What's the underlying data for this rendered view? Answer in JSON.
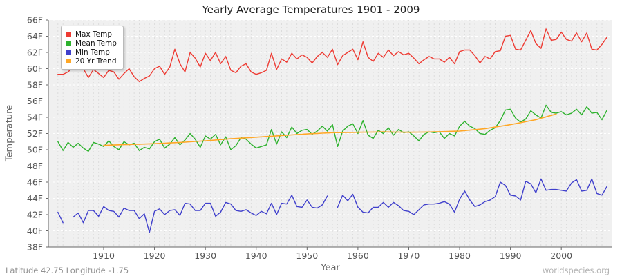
{
  "footer": {
    "left": "Latitude 42.75 Longitude -1.75",
    "right": "worldspecies.org"
  },
  "colors": {
    "plot_background": "#f0f0f0",
    "grid_vertical": "#dcdcdc",
    "grid_horizontal": "#ffffff",
    "axis": "#666666",
    "tick_text": "#555555",
    "title_text": "#222222"
  },
  "chart_data": {
    "type": "line",
    "title": "Yearly Average Temperatures 1901 - 2009",
    "xlabel": "Year",
    "ylabel": "Temperature",
    "years_range": [
      1901,
      2009
    ],
    "ylim": [
      38,
      66
    ],
    "ytick_step": 2,
    "ytick_suffix": "F",
    "xticks": [
      1910,
      1920,
      1930,
      1940,
      1950,
      1960,
      1970,
      1980,
      1990,
      2000
    ],
    "grid": "vertical dashed line per year, horizontal dashed line per 2F",
    "legend_position": "top-left",
    "series": [
      {
        "name": "Max Temp",
        "color": "#ee3b33",
        "values": [
          59.3,
          59.3,
          59.6,
          60.2,
          60.7,
          60.0,
          58.9,
          59.9,
          59.4,
          58.9,
          59.8,
          59.6,
          58.7,
          59.4,
          60.0,
          59.0,
          58.4,
          58.8,
          59.1,
          60.0,
          60.3,
          59.3,
          60.2,
          62.4,
          60.6,
          59.6,
          62.0,
          61.3,
          60.2,
          61.9,
          61.0,
          62.0,
          60.6,
          61.5,
          59.8,
          59.5,
          60.3,
          60.6,
          59.6,
          59.3,
          59.5,
          59.8,
          61.9,
          59.9,
          61.2,
          60.8,
          61.9,
          61.2,
          61.7,
          61.4,
          60.7,
          61.5,
          62.0,
          61.4,
          62.4,
          60.5,
          61.6,
          62.0,
          62.4,
          61.1,
          63.3,
          61.4,
          60.9,
          61.9,
          61.4,
          62.3,
          61.6,
          62.1,
          61.7,
          61.9,
          61.3,
          60.6,
          61.1,
          61.5,
          61.2,
          61.2,
          60.8,
          61.4,
          60.6,
          62.1,
          62.3,
          62.3,
          61.6,
          60.7,
          61.5,
          61.2,
          62.1,
          62.2,
          64.0,
          64.1,
          62.4,
          62.3,
          63.5,
          64.7,
          63.1,
          62.5,
          64.9,
          63.5,
          63.6,
          64.5,
          63.6,
          63.4,
          64.4,
          63.3,
          64.4,
          62.4,
          62.3,
          63.0,
          63.9
        ]
      },
      {
        "name": "Mean Temp",
        "color": "#2eb22e",
        "values": [
          51.0,
          49.9,
          50.9,
          50.3,
          50.8,
          50.2,
          49.8,
          50.9,
          50.7,
          50.4,
          51.1,
          50.4,
          50.0,
          51.0,
          50.6,
          50.8,
          49.9,
          50.3,
          50.1,
          51.0,
          51.3,
          50.2,
          50.7,
          51.5,
          50.6,
          51.2,
          52.0,
          51.3,
          50.3,
          51.7,
          51.3,
          51.9,
          50.6,
          51.6,
          50.0,
          50.5,
          51.5,
          51.3,
          50.7,
          50.2,
          50.4,
          50.6,
          52.5,
          50.7,
          52.2,
          51.5,
          52.8,
          52.0,
          52.4,
          52.5,
          51.9,
          52.3,
          52.9,
          52.3,
          53.1,
          50.4,
          52.3,
          52.9,
          53.2,
          52.0,
          53.6,
          51.8,
          51.4,
          52.4,
          52.0,
          52.7,
          51.8,
          52.5,
          52.1,
          52.2,
          51.7,
          51.1,
          51.9,
          52.2,
          52.1,
          52.2,
          51.4,
          52.0,
          51.7,
          52.9,
          53.5,
          52.9,
          52.6,
          52.0,
          51.9,
          52.4,
          52.7,
          53.6,
          54.9,
          55.0,
          53.9,
          53.4,
          53.8,
          54.8,
          54.3,
          53.9,
          55.5,
          54.6,
          54.5,
          54.7,
          54.3,
          54.5,
          55.0,
          54.3,
          55.3,
          54.5,
          54.6,
          53.7,
          54.9
        ]
      },
      {
        "name": "Min Temp",
        "color": "#4040cc",
        "values": [
          42.3,
          41.0,
          null,
          41.7,
          42.2,
          41.0,
          42.5,
          42.5,
          41.8,
          43.0,
          42.5,
          42.4,
          41.7,
          42.8,
          42.5,
          42.5,
          41.5,
          42.1,
          39.8,
          42.4,
          42.7,
          42.0,
          42.5,
          42.6,
          41.9,
          43.4,
          43.3,
          42.5,
          42.5,
          43.4,
          43.4,
          41.8,
          42.3,
          43.5,
          43.3,
          42.5,
          42.4,
          42.6,
          42.2,
          41.9,
          42.4,
          42.1,
          43.4,
          42.0,
          43.4,
          43.3,
          44.4,
          43.0,
          42.9,
          43.8,
          42.9,
          42.8,
          43.2,
          44.3,
          null,
          42.9,
          44.4,
          43.7,
          44.5,
          42.9,
          42.3,
          42.2,
          42.9,
          42.9,
          43.5,
          42.9,
          43.5,
          43.1,
          42.5,
          42.4,
          42.0,
          42.6,
          43.2,
          43.3,
          43.3,
          43.4,
          43.6,
          43.3,
          42.3,
          43.9,
          44.9,
          43.8,
          43.0,
          43.2,
          43.6,
          43.8,
          44.2,
          46.0,
          45.6,
          44.4,
          44.3,
          43.8,
          46.1,
          45.8,
          44.7,
          46.4,
          45.0,
          45.1,
          45.1,
          45.0,
          44.9,
          45.9,
          46.3,
          44.9,
          45.0,
          46.4,
          44.6,
          44.4,
          45.5
        ]
      },
      {
        "name": "20 Yr Trend",
        "color": "#ffa726",
        "values": [
          null,
          null,
          null,
          null,
          null,
          null,
          null,
          null,
          null,
          50.55,
          50.57,
          50.59,
          50.61,
          50.63,
          50.65,
          50.67,
          50.69,
          50.71,
          50.73,
          50.75,
          50.78,
          50.81,
          50.84,
          50.87,
          50.9,
          50.94,
          50.98,
          51.02,
          51.06,
          51.1,
          51.15,
          51.2,
          51.25,
          51.3,
          51.35,
          51.39,
          51.43,
          51.47,
          51.51,
          51.55,
          51.59,
          51.63,
          51.67,
          51.71,
          51.75,
          51.79,
          51.83,
          51.87,
          51.91,
          51.95,
          51.98,
          52.01,
          52.04,
          52.07,
          52.1,
          52.11,
          52.12,
          52.13,
          52.14,
          52.15,
          52.16,
          52.17,
          52.18,
          52.19,
          52.2,
          52.19,
          52.18,
          52.17,
          52.16,
          52.15,
          52.16,
          52.17,
          52.18,
          52.19,
          52.2,
          52.22,
          52.24,
          52.26,
          52.28,
          52.3,
          52.36,
          52.42,
          52.48,
          52.54,
          52.6,
          52.7,
          52.8,
          52.9,
          53.0,
          53.1,
          53.22,
          53.34,
          53.46,
          53.58,
          53.7,
          53.88,
          54.06,
          54.24,
          54.4,
          null,
          null,
          null,
          null,
          null,
          null,
          null,
          null,
          null,
          null
        ]
      }
    ]
  }
}
